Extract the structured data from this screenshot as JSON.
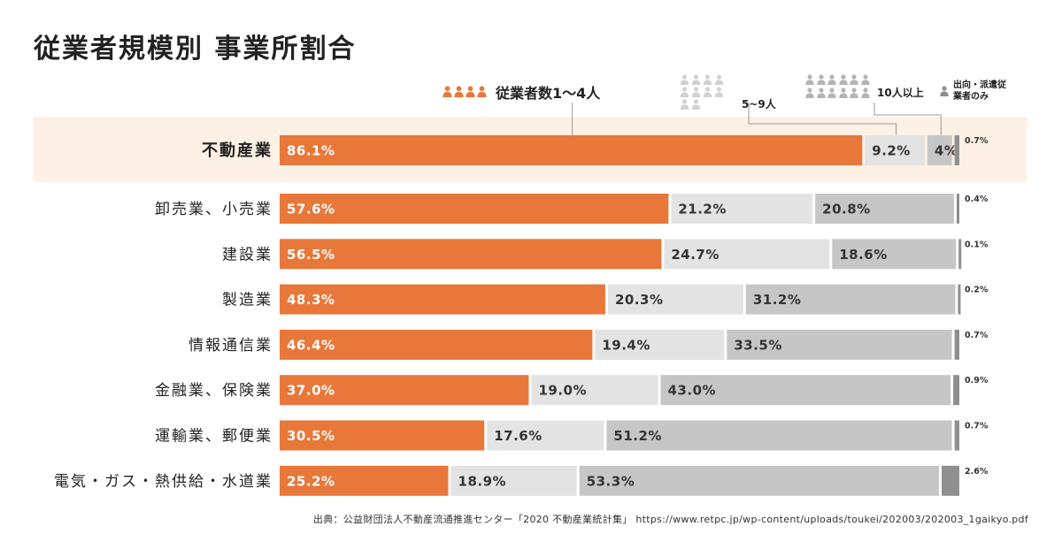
{
  "title": "従業者規模別 事業所割合",
  "colors": {
    "orange": "#e8773a",
    "light_gray": "#e3e3e3",
    "mid_gray": "#c6c6c6",
    "dark_gray": "#8f8f8f",
    "highlight_bg": "#fdf0e4"
  },
  "legend": {
    "size_1_4": "従業者数1～4人",
    "size_5_9": "5~9人",
    "size_10_plus": "10人以上",
    "dispatched": "出向・派遣従業者のみ"
  },
  "chart_data": {
    "type": "bar",
    "orientation": "horizontal",
    "stacked": true,
    "unit": "%",
    "title": "従業者規模別 事業所割合",
    "highlighted_category": "不動産業",
    "series_names": [
      "従業者数1～4人",
      "5~9人",
      "10人以上",
      "出向・派遣従業者のみ"
    ],
    "rows": [
      {
        "category": "不動産業",
        "labels": [
          "86.1%",
          "9.2%",
          "4%",
          "0.7%"
        ],
        "values": [
          86.1,
          9.2,
          4.0,
          0.7
        ]
      },
      {
        "category": "卸売業、小売業",
        "labels": [
          "57.6%",
          "21.2%",
          "20.8%",
          "0.4%"
        ],
        "values": [
          57.6,
          21.2,
          20.8,
          0.4
        ]
      },
      {
        "category": "建設業",
        "labels": [
          "56.5%",
          "24.7%",
          "18.6%",
          "0.1%"
        ],
        "values": [
          56.5,
          24.7,
          18.6,
          0.1
        ]
      },
      {
        "category": "製造業",
        "labels": [
          "48.3%",
          "20.3%",
          "31.2%",
          "0.2%"
        ],
        "values": [
          48.3,
          20.3,
          31.2,
          0.2
        ]
      },
      {
        "category": "情報通信業",
        "labels": [
          "46.4%",
          "19.4%",
          "33.5%",
          "0.7%"
        ],
        "values": [
          46.4,
          19.4,
          33.5,
          0.7
        ]
      },
      {
        "category": "金融業、保険業",
        "labels": [
          "37.0%",
          "19.0%",
          "43.0%",
          "0.9%"
        ],
        "values": [
          37.0,
          19.0,
          43.0,
          0.9
        ]
      },
      {
        "category": "運輸業、郵便業",
        "labels": [
          "30.5%",
          "17.6%",
          "51.2%",
          "0.7%"
        ],
        "values": [
          30.5,
          17.6,
          51.2,
          0.7
        ]
      },
      {
        "category": "電気・ガス・熱供給・水道業",
        "labels": [
          "25.2%",
          "18.9%",
          "53.3%",
          "2.6%"
        ],
        "values": [
          25.2,
          18.9,
          53.3,
          2.6
        ]
      }
    ]
  },
  "source": "出典：公益財団法人不動産流通推進センター「2020 不動産業統計集」 https://www.retpc.jp/wp-content/uploads/toukei/202003/202003_1gaikyo.pdf"
}
